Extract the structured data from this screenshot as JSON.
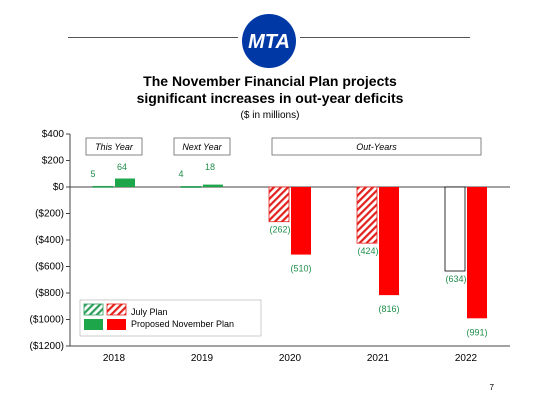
{
  "logo": {
    "text": "MTA",
    "color": "#0039A6"
  },
  "title_line1": "The November Financial Plan projects",
  "title_line2": "significant increases in out-year deficits",
  "subtitle": "($ in millions)",
  "page_number": "7",
  "chart_data": {
    "type": "bar",
    "categories": [
      "2018",
      "2019",
      "2020",
      "2021",
      "2022"
    ],
    "series": [
      {
        "name": "July Plan",
        "style": "hatched",
        "values": [
          5,
          4,
          -262,
          -424,
          -634
        ],
        "labels": [
          "5",
          "4",
          "(262)",
          "(424)",
          "(634)"
        ]
      },
      {
        "name": "Proposed November Plan",
        "style": "solid",
        "values": [
          64,
          18,
          -510,
          -816,
          -991
        ],
        "labels": [
          "64",
          "18",
          "(510)",
          "(816)",
          "(991)"
        ]
      }
    ],
    "ylim": [
      -1200,
      400
    ],
    "yticks": [
      400,
      200,
      0,
      -200,
      -400,
      -600,
      -800,
      -1000,
      -1200
    ],
    "ytick_labels": [
      "$400",
      "$200",
      "$0",
      "($200)",
      "($400)",
      "($600)",
      "($800)",
      "($1000)",
      "($1200)"
    ],
    "period_labels": [
      {
        "text": "This Year",
        "from": 0,
        "to": 0
      },
      {
        "text": "Next Year",
        "from": 1,
        "to": 1
      },
      {
        "text": "Out-Years",
        "from": 2,
        "to": 4
      }
    ],
    "legend_position": "bottom-left",
    "colors": {
      "july_green": "#2e9e5b",
      "july_red": "#e3211c",
      "nov_green": "#1ea64a",
      "nov_red": "#ff0000",
      "label_green": "#1f8f4a"
    },
    "xlabel": "",
    "ylabel": ""
  }
}
